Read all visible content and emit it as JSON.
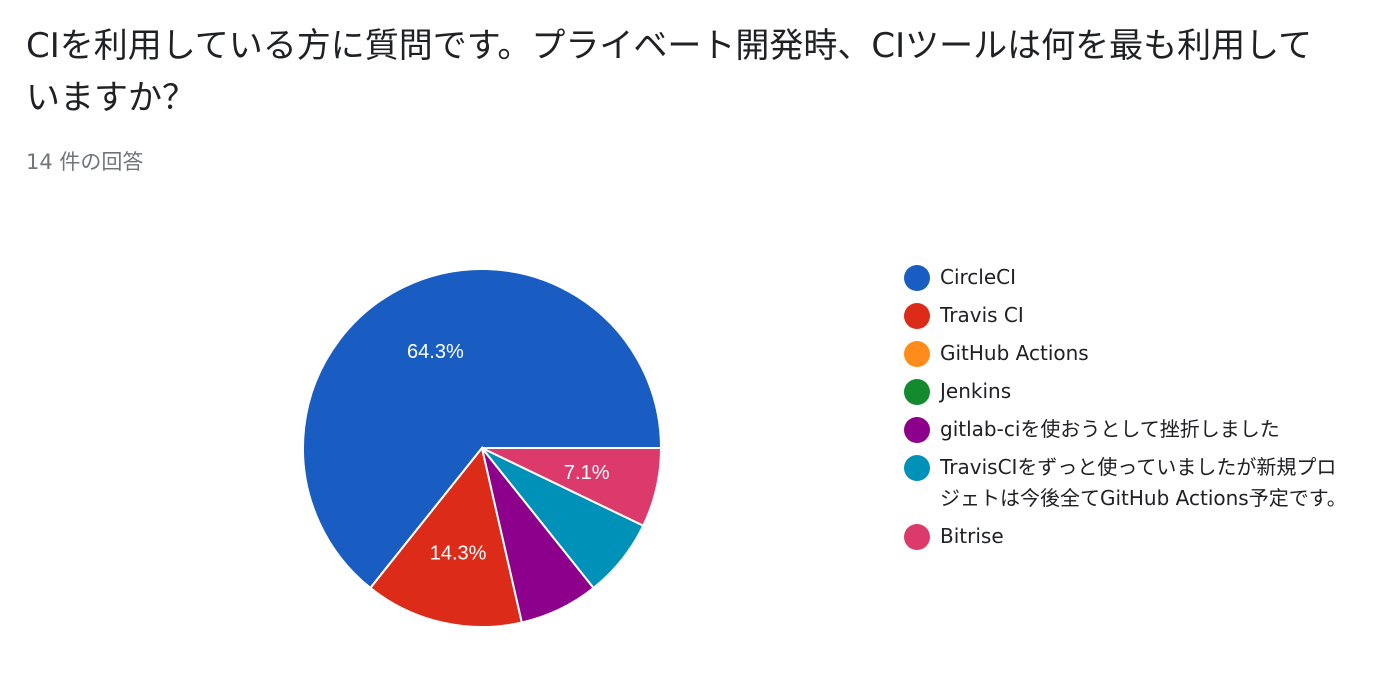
{
  "question": {
    "title": "CIを利用している方に質問です。プライベート開発時、CIツールは何を最も利用していますか？",
    "response_count": "14 件の回答"
  },
  "chart_data": {
    "type": "pie",
    "title": "CIを利用している方に質問です。プライベート開発時、CIツールは何を最も利用していますか？",
    "total_responses": 14,
    "legend_position": "right",
    "slices": [
      {
        "label": "CircleCI",
        "percent": 64.3,
        "count": 9,
        "color": "#1a5dc2",
        "show_label": "64.3%"
      },
      {
        "label": "Travis CI",
        "percent": 14.3,
        "count": 2,
        "color": "#dc2b19",
        "show_label": "14.3%"
      },
      {
        "label": "GitHub Actions",
        "percent": 0,
        "count": 0,
        "color": "#ff8c1a",
        "show_label": ""
      },
      {
        "label": "Jenkins",
        "percent": 0,
        "count": 0,
        "color": "#148a2e",
        "show_label": ""
      },
      {
        "label": "gitlab-ciを使おうとして挫折しました",
        "percent": 7.1,
        "count": 1,
        "color": "#8c008c",
        "show_label": ""
      },
      {
        "label": "TravisCIをずっと使っていましたが新規プロジェトは今後全てGitHub Actions予定です。",
        "percent": 7.1,
        "count": 1,
        "color": "#0091b8",
        "show_label": ""
      },
      {
        "label": "Bitrise",
        "percent": 7.1,
        "count": 1,
        "color": "#db3a6a",
        "show_label": "7.1%"
      }
    ]
  }
}
